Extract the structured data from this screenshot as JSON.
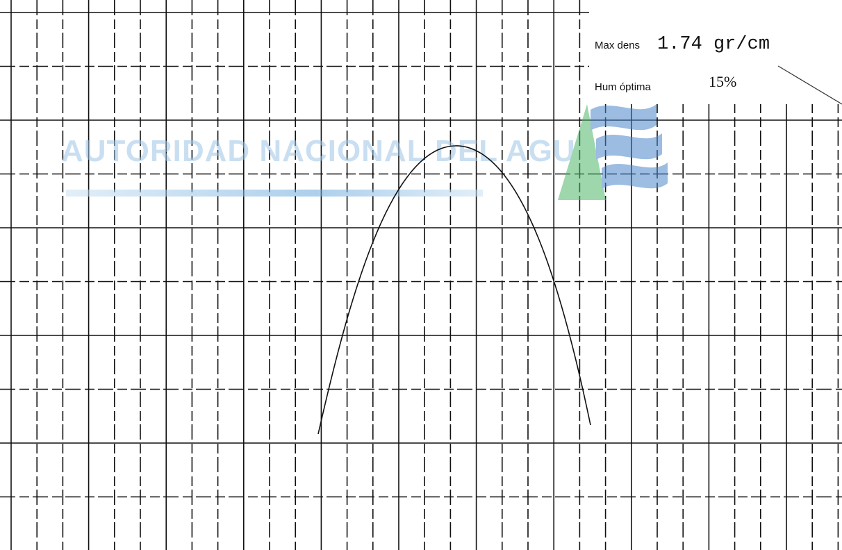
{
  "annotations": {
    "max_dens_label": "Max  dens",
    "max_dens_value": "1.74 gr/cm",
    "hum_label": "Hum  óptima",
    "hum_value": "15%"
  },
  "watermark": "AUTORIDAD  NACIONAL  DEL  AGUA"
}
